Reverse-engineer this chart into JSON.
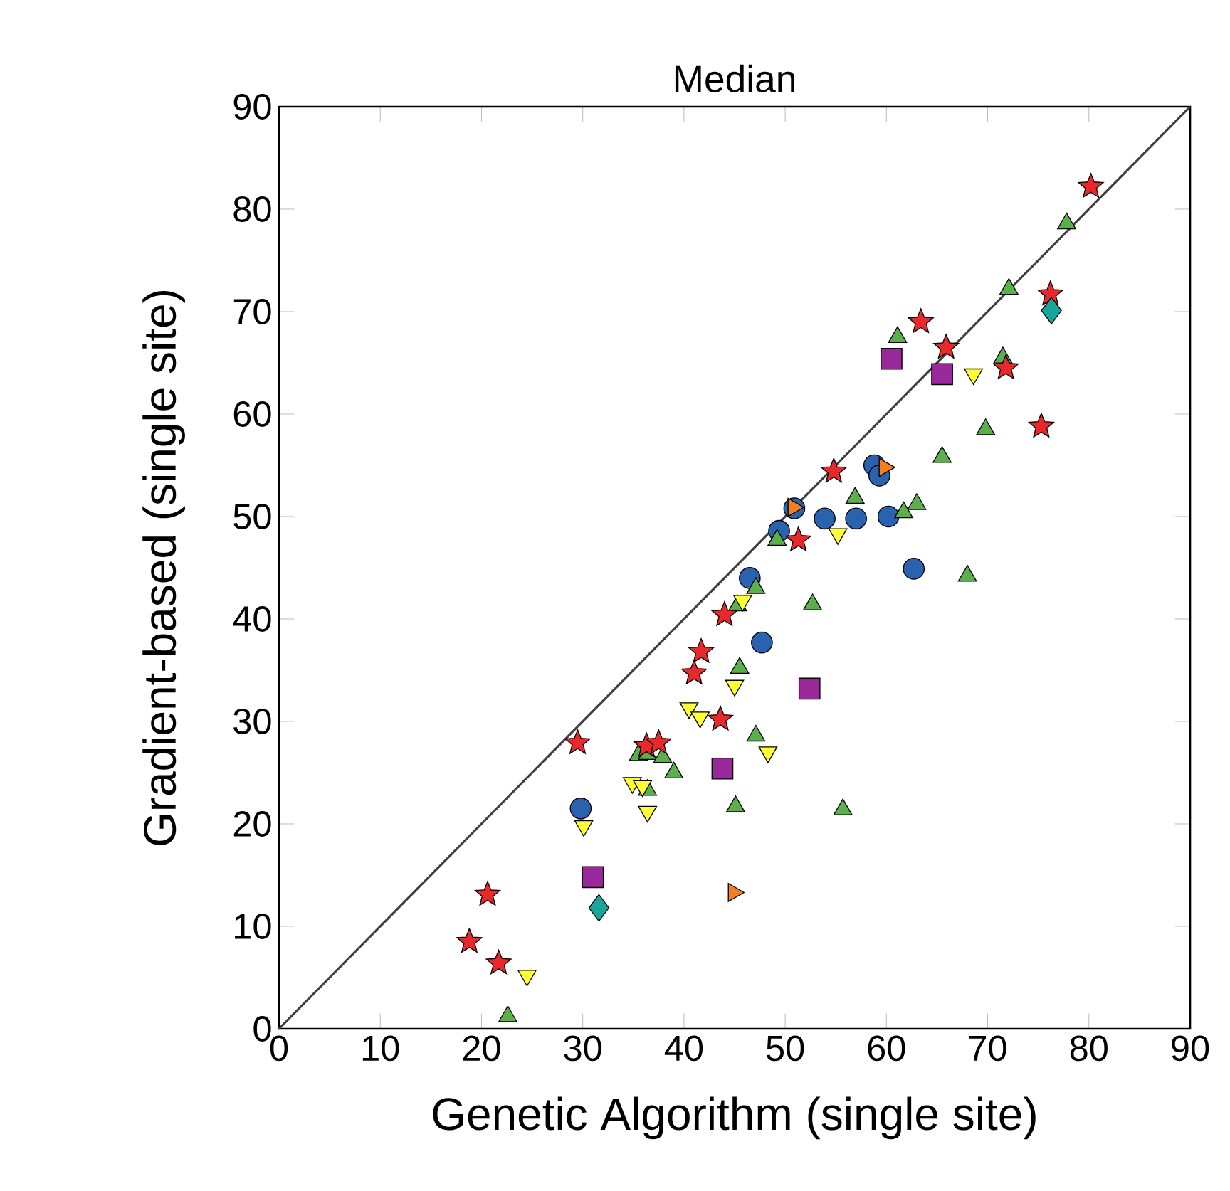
{
  "chart_data": {
    "type": "scatter",
    "title": "Median",
    "xlabel": "Genetic Algorithm (single site)",
    "ylabel": "Gradient-based (single site)",
    "xlim": [
      0,
      90
    ],
    "ylim": [
      0,
      90
    ],
    "xticks": [
      0,
      10,
      20,
      30,
      40,
      50,
      60,
      70,
      80,
      90
    ],
    "yticks": [
      0,
      10,
      20,
      30,
      40,
      50,
      60,
      70,
      80,
      90
    ],
    "grid": false,
    "series": [
      {
        "type": "line",
        "color": "#404040",
        "marker": "none",
        "line_style": "solid",
        "x": [
          0,
          90
        ],
        "values": [
          0,
          90
        ]
      },
      {
        "color": "#2a62b0",
        "marker": "circle",
        "x": [
          58.8,
          59.3,
          50.9,
          53.9,
          57.0,
          60.2,
          49.4,
          46.5,
          62.7,
          47.7,
          29.8
        ],
        "values": [
          55.0,
          54.0,
          50.8,
          49.8,
          49.8,
          50.0,
          48.6,
          44.0,
          44.9,
          37.7,
          21.5
        ]
      },
      {
        "color": "#5cb04c",
        "marker": "triangle",
        "x": [
          77.8,
          72.1,
          61.1,
          71.5,
          69.8,
          65.5,
          56.9,
          63.0,
          61.7,
          49.2,
          47.1,
          68.0,
          52.7,
          45.3,
          45.5,
          47.1,
          35.5,
          36.4,
          37.9,
          39.0,
          36.4,
          45.1,
          55.7,
          22.6
        ],
        "values": [
          78.6,
          72.2,
          67.5,
          65.5,
          58.5,
          55.8,
          51.8,
          51.2,
          50.4,
          47.7,
          43.0,
          44.2,
          41.4,
          41.3,
          35.2,
          28.6,
          26.7,
          26.8,
          26.5,
          25.0,
          23.3,
          21.7,
          21.4,
          1.2
        ]
      },
      {
        "color": "#ffff33",
        "marker": "triangle-down",
        "x": [
          68.6,
          55.2,
          45.8,
          45.0,
          40.5,
          41.6,
          48.3,
          34.9,
          35.9,
          36.4,
          30.1,
          24.5
        ],
        "values": [
          63.9,
          48.3,
          41.8,
          33.5,
          31.3,
          30.4,
          27.0,
          24.0,
          23.7,
          21.2,
          19.8,
          5.2
        ]
      },
      {
        "color": "#e8282a",
        "marker": "star",
        "x": [
          80.2,
          76.2,
          63.4,
          65.9,
          71.8,
          75.3,
          54.8,
          51.3,
          44.0,
          41.7,
          41.0,
          43.6,
          29.5,
          36.3,
          37.5,
          20.6,
          18.8,
          21.7
        ],
        "values": [
          82.2,
          71.7,
          69.0,
          66.5,
          64.5,
          58.8,
          54.4,
          47.7,
          40.4,
          36.8,
          34.7,
          30.2,
          27.9,
          27.6,
          27.9,
          13.1,
          8.5,
          6.4
        ]
      },
      {
        "color": "#99289a",
        "marker": "square",
        "x": [
          60.5,
          65.5,
          52.4,
          43.8,
          31.0
        ],
        "values": [
          65.4,
          63.9,
          33.2,
          25.4,
          14.8
        ]
      },
      {
        "color": "#1aa59a",
        "marker": "diamond",
        "x": [
          76.3,
          31.6
        ],
        "values": [
          70.1,
          11.8
        ]
      },
      {
        "color": "#f57f1c",
        "marker": "triangle-right",
        "x": [
          59.8,
          50.8,
          44.9
        ],
        "values": [
          54.8,
          50.9,
          13.3
        ]
      }
    ]
  }
}
